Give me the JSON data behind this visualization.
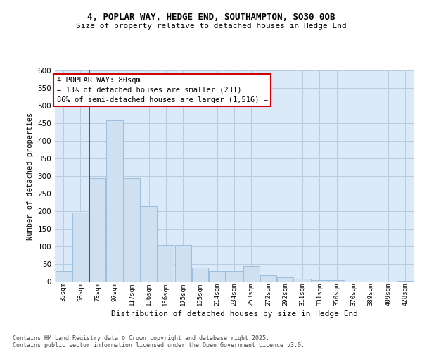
{
  "title1": "4, POPLAR WAY, HEDGE END, SOUTHAMPTON, SO30 0QB",
  "title2": "Size of property relative to detached houses in Hedge End",
  "xlabel": "Distribution of detached houses by size in Hedge End",
  "ylabel": "Number of detached properties",
  "categories": [
    "39sqm",
    "58sqm",
    "78sqm",
    "97sqm",
    "117sqm",
    "136sqm",
    "156sqm",
    "175sqm",
    "195sqm",
    "214sqm",
    "234sqm",
    "253sqm",
    "272sqm",
    "292sqm",
    "311sqm",
    "331sqm",
    "350sqm",
    "370sqm",
    "389sqm",
    "409sqm",
    "428sqm"
  ],
  "values": [
    30,
    197,
    295,
    458,
    295,
    215,
    105,
    105,
    40,
    30,
    30,
    45,
    18,
    12,
    8,
    4,
    4,
    0,
    0,
    0,
    3
  ],
  "bar_color": "#cfe0f0",
  "bar_edge_color": "#90b8d8",
  "grid_color": "#b8ccdf",
  "bg_color": "#daeaf8",
  "vline_color": "#cc0000",
  "annotation_text": "4 POPLAR WAY: 80sqm\n← 13% of detached houses are smaller (231)\n86% of semi-detached houses are larger (1,516) →",
  "annotation_box_color": "#cc0000",
  "footer": "Contains HM Land Registry data © Crown copyright and database right 2025.\nContains public sector information licensed under the Open Government Licence v3.0.",
  "ylim": [
    0,
    600
  ],
  "yticks": [
    0,
    50,
    100,
    150,
    200,
    250,
    300,
    350,
    400,
    450,
    500,
    550,
    600
  ],
  "vline_pos": 1.5
}
